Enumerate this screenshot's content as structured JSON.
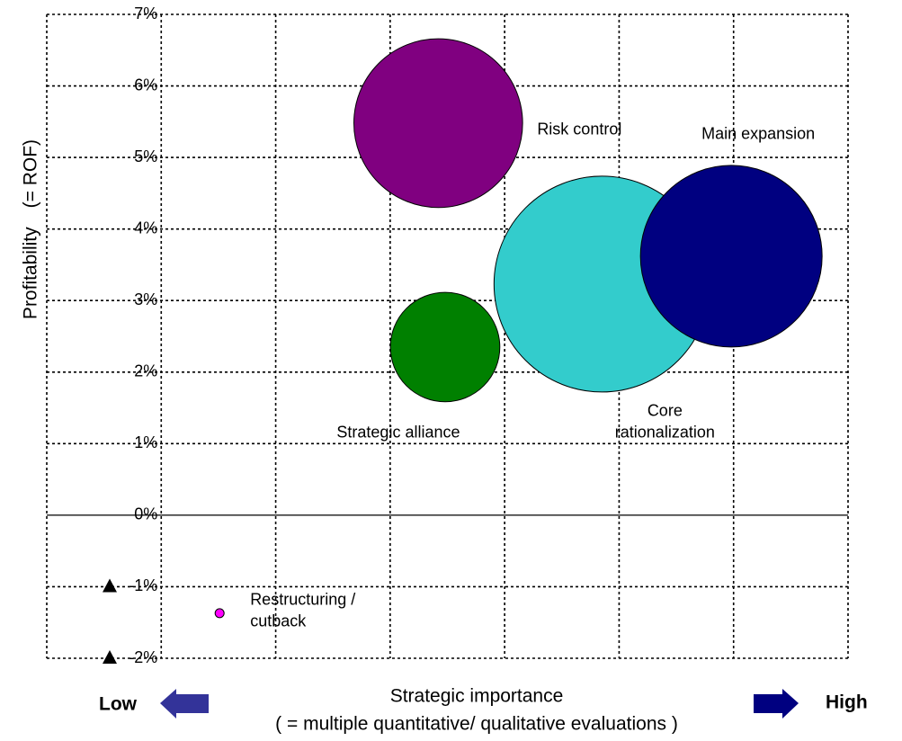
{
  "chart_data": {
    "type": "bubble",
    "y_label": "Profitability　(= ROF)",
    "x_label": "Strategic importance",
    "x_sublabel": "( = multiple quantitative/ qualitative evaluations )",
    "x_low": "Low",
    "x_high": "High",
    "xlim": [
      0,
      7
    ],
    "xticks": [
      0,
      1,
      2,
      3,
      4,
      5,
      6,
      7
    ],
    "ylim": [
      -2,
      7
    ],
    "yticks": [
      {
        "value": -2,
        "label": "-2%"
      },
      {
        "value": -1,
        "label": "-1%"
      },
      {
        "value": 0,
        "label": "0%"
      },
      {
        "value": 1,
        "label": "1%"
      },
      {
        "value": 2,
        "label": "2%"
      },
      {
        "value": 3,
        "label": "3%"
      },
      {
        "value": 4,
        "label": "4%"
      },
      {
        "value": 5,
        "label": "5%"
      },
      {
        "value": 6,
        "label": "6%"
      },
      {
        "value": 7,
        "label": "7%"
      }
    ],
    "grid": true,
    "series": [
      {
        "name": [
          "Risk control"
        ],
        "color": "#800080",
        "x": [
          3.42
        ],
        "values": [
          5.48
        ],
        "sizes": [
          88
        ]
      },
      {
        "name": [
          "Strategic alliance"
        ],
        "color": "#008000",
        "x": [
          3.48
        ],
        "values": [
          2.35
        ],
        "sizes": [
          37
        ]
      },
      {
        "name": [
          "Core",
          "rationalization"
        ],
        "color": "#33cccc",
        "x": [
          4.85
        ],
        "values": [
          3.23
        ],
        "sizes": [
          144
        ]
      },
      {
        "name": [
          "Main expansion"
        ],
        "color": "#000080",
        "x": [
          5.98
        ],
        "values": [
          3.62
        ],
        "sizes": [
          102
        ]
      },
      {
        "name": [
          "Restructuring /",
          "cutback"
        ],
        "color": "#ff00ff",
        "x": [
          1.51
        ],
        "values": [
          -1.37
        ],
        "sizes": [
          0.25
        ]
      }
    ]
  }
}
